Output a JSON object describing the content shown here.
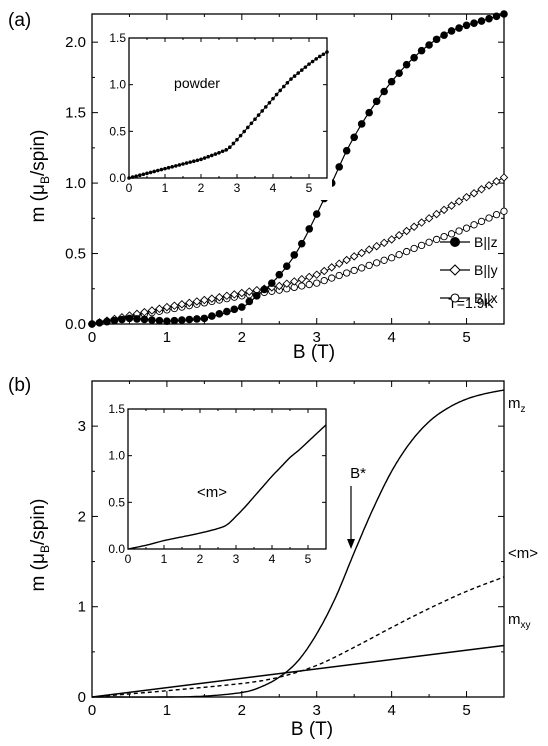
{
  "panel_a": {
    "label": "(a)",
    "xlabel": "B (T)",
    "ylabel": "m (μ",
    "ylabel_sub": "B",
    "ylabel_tail": "/spin)",
    "annotation": "T=1.9K",
    "legend": [
      "B||z",
      "B||y",
      "B||x"
    ],
    "inset_label": "powder"
  },
  "panel_b": {
    "label": "(b)",
    "xlabel": "B (T)",
    "ylabel": "m (μ",
    "ylabel_sub": "B",
    "ylabel_tail": "/spin)",
    "arrow_label": "B*",
    "curve_labels": {
      "mz_main": "m",
      "mz_sub": "z",
      "mavg": "<m>",
      "mxy_main": "m",
      "mxy_sub": "xy"
    },
    "inset_label": "<m>"
  },
  "chart_data": [
    {
      "type": "scatter",
      "panel": "(a)",
      "xlabel": "B (T)",
      "ylabel": "m (μB/spin)",
      "xlim": [
        0,
        5.5
      ],
      "ylim": [
        0,
        2.2
      ],
      "xticks": [
        "0",
        "1",
        "2",
        "3",
        "4",
        "5"
      ],
      "yticks": [
        "0.0",
        "0.5",
        "1.0",
        "1.5",
        "2.0"
      ],
      "annotation": "T=1.9K",
      "legend_position": "right",
      "series": [
        {
          "name": "B||z",
          "marker": "filled-circle",
          "x": [
            0,
            0.5,
            1.0,
            1.5,
            2.0,
            2.2,
            2.4,
            2.6,
            2.8,
            3.0,
            3.2,
            3.4,
            3.6,
            3.8,
            4.0,
            4.2,
            4.4,
            4.6,
            4.8,
            5.0,
            5.2,
            5.5
          ],
          "y": [
            0,
            0.04,
            0.02,
            0.04,
            0.12,
            0.2,
            0.29,
            0.41,
            0.57,
            0.78,
            1.0,
            1.23,
            1.42,
            1.58,
            1.72,
            1.84,
            1.94,
            2.02,
            2.08,
            2.12,
            2.15,
            2.2
          ]
        },
        {
          "name": "B||y",
          "marker": "open-diamond",
          "x": [
            0,
            0.5,
            1.0,
            1.5,
            2.0,
            2.5,
            3.0,
            3.5,
            4.0,
            4.5,
            5.0,
            5.5
          ],
          "y": [
            0,
            0.06,
            0.12,
            0.17,
            0.22,
            0.27,
            0.35,
            0.48,
            0.6,
            0.75,
            0.9,
            1.04
          ]
        },
        {
          "name": "B||x",
          "marker": "open-circle",
          "x": [
            0,
            0.5,
            1.0,
            1.5,
            2.0,
            2.5,
            3.0,
            3.5,
            4.0,
            4.5,
            5.0,
            5.5
          ],
          "y": [
            0,
            0.05,
            0.1,
            0.15,
            0.2,
            0.24,
            0.29,
            0.38,
            0.47,
            0.58,
            0.68,
            0.8
          ]
        }
      ]
    },
    {
      "type": "line",
      "panel": "(a) inset",
      "title": "powder",
      "xlim": [
        0,
        5.5
      ],
      "ylim": [
        0,
        1.5
      ],
      "xticks": [
        "0",
        "1",
        "2",
        "3",
        "4",
        "5"
      ],
      "yticks": [
        "0.0",
        "0.5",
        "1.0",
        "1.5"
      ],
      "series": [
        {
          "name": "powder",
          "marker": "filled-circle",
          "x": [
            0,
            0.5,
            1.0,
            1.5,
            2.0,
            2.5,
            2.75,
            3.0,
            3.25,
            3.5,
            3.75,
            4.0,
            4.25,
            4.5,
            4.75,
            5.0,
            5.25,
            5.5
          ],
          "y": [
            0,
            0.05,
            0.1,
            0.15,
            0.2,
            0.27,
            0.31,
            0.41,
            0.52,
            0.63,
            0.74,
            0.85,
            0.96,
            1.06,
            1.14,
            1.22,
            1.29,
            1.35
          ]
        }
      ]
    },
    {
      "type": "line",
      "panel": "(b)",
      "xlabel": "B (T)",
      "ylabel": "m (μB/spin)",
      "xlim": [
        0,
        5.5
      ],
      "ylim": [
        0,
        3.5
      ],
      "xticks": [
        "0",
        "1",
        "2",
        "3",
        "4",
        "5"
      ],
      "yticks": [
        "0",
        "1",
        "2",
        "3"
      ],
      "arrow": {
        "label": "B*",
        "x": 3.5
      },
      "series": [
        {
          "name": "m_z",
          "style": "solid",
          "x": [
            0,
            1.0,
            1.5,
            2.0,
            2.25,
            2.5,
            2.75,
            3.0,
            3.25,
            3.5,
            3.75,
            4.0,
            4.25,
            4.5,
            4.75,
            5.0,
            5.25,
            5.5
          ],
          "y": [
            0,
            0.0,
            0.01,
            0.05,
            0.11,
            0.22,
            0.4,
            0.7,
            1.1,
            1.6,
            2.08,
            2.5,
            2.82,
            3.05,
            3.2,
            3.3,
            3.36,
            3.4
          ]
        },
        {
          "name": "<m>",
          "style": "dashed",
          "x": [
            0,
            1.0,
            2.0,
            2.5,
            3.0,
            3.5,
            4.0,
            4.5,
            5.0,
            5.5
          ],
          "y": [
            0,
            0.07,
            0.15,
            0.22,
            0.35,
            0.55,
            0.77,
            0.98,
            1.17,
            1.33
          ]
        },
        {
          "name": "m_xy",
          "style": "solid",
          "x": [
            0,
            5.5
          ],
          "y": [
            0,
            0.57
          ]
        }
      ]
    },
    {
      "type": "line",
      "panel": "(b) inset",
      "title": "<m>",
      "xlim": [
        0,
        5.5
      ],
      "ylim": [
        0,
        1.5
      ],
      "xticks": [
        "0",
        "1",
        "2",
        "3",
        "4",
        "5"
      ],
      "yticks": [
        "0.0",
        "0.5",
        "1.0",
        "1.5"
      ],
      "series": [
        {
          "name": "<m>",
          "style": "solid",
          "x": [
            0,
            0.5,
            1.0,
            1.5,
            2.0,
            2.5,
            2.75,
            3.0,
            3.25,
            3.5,
            3.75,
            4.0,
            4.25,
            4.5,
            4.75,
            5.0,
            5.25,
            5.5
          ],
          "y": [
            0,
            0.04,
            0.09,
            0.13,
            0.17,
            0.22,
            0.26,
            0.35,
            0.45,
            0.56,
            0.67,
            0.78,
            0.88,
            0.98,
            1.06,
            1.15,
            1.24,
            1.33
          ]
        }
      ]
    }
  ]
}
